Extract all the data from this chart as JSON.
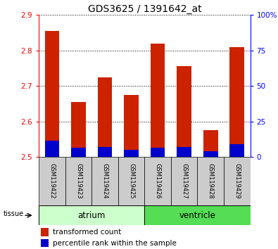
{
  "title": "GDS3625 / 1391642_at",
  "samples": [
    "GSM119422",
    "GSM119423",
    "GSM119424",
    "GSM119425",
    "GSM119426",
    "GSM119427",
    "GSM119428",
    "GSM119429"
  ],
  "red_tops": [
    2.855,
    2.655,
    2.725,
    2.675,
    2.82,
    2.755,
    2.575,
    2.81
  ],
  "blue_tops": [
    2.545,
    2.525,
    2.527,
    2.52,
    2.525,
    2.528,
    2.515,
    2.535
  ],
  "bar_base": 2.5,
  "ylim_left": [
    2.5,
    2.9
  ],
  "ylim_right": [
    0,
    100
  ],
  "yticks_left": [
    2.5,
    2.6,
    2.7,
    2.8,
    2.9
  ],
  "yticks_right": [
    0,
    25,
    50,
    75,
    100
  ],
  "ytick_labels_right": [
    "0",
    "25",
    "50",
    "75",
    "100%"
  ],
  "tissue_label": "tissue",
  "legend": [
    {
      "label": "transformed count",
      "color": "#cc2200"
    },
    {
      "label": "percentile rank within the sample",
      "color": "#0000cc"
    }
  ],
  "red_color": "#cc2200",
  "blue_color": "#0000cc",
  "bar_width": 0.55,
  "title_fontsize": 10,
  "tick_fontsize": 7.5,
  "sample_fontsize": 6,
  "legend_fontsize": 7.5,
  "group_fontsize": 8.5,
  "group_atrium_color": "#ccffcc",
  "group_ventricle_color": "#55dd55",
  "sample_box_color": "#cccccc"
}
